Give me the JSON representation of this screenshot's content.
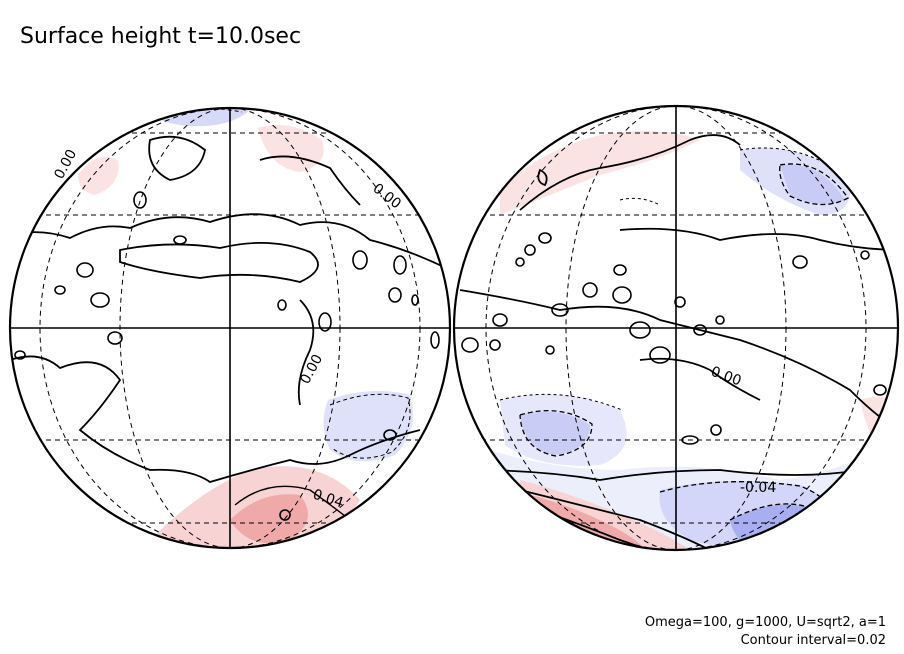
{
  "title": "Surface height t=10.0sec",
  "footer": {
    "params": "Omega=100, g=1000, U=sqrt2, a=1",
    "contour_interval": "Contour interval=0.02"
  },
  "colors": {
    "positive_fill": "#f6c9c9",
    "positive_strong": "#ee9c9c",
    "negative_fill": "#d7d9f8",
    "negative_strong": "#9ea2ef",
    "line": "#000000"
  },
  "contour_labels": {
    "left_top_left": "0.00",
    "left_top_right": "0.00",
    "left_center": "0.00",
    "left_bottom": "0.04",
    "right_center": "0.00",
    "right_bottom": "-0.04"
  }
}
